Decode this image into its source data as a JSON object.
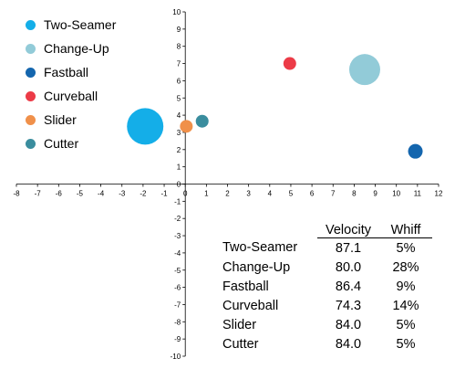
{
  "chart_data": {
    "type": "scatter",
    "title": "",
    "xlabel": "",
    "ylabel": "",
    "xlim": [
      -8,
      12
    ],
    "ylim": [
      -10,
      10
    ],
    "x_ticks": [
      "-8",
      "-7",
      "-6",
      "-5",
      "-4",
      "-3",
      "-2",
      "-1",
      "0",
      "1",
      "2",
      "3",
      "4",
      "5",
      "6",
      "7",
      "8",
      "9",
      "10",
      "11",
      "12"
    ],
    "y_ticks": [
      "-10",
      "-9",
      "-8",
      "-7",
      "-6",
      "-5",
      "-4",
      "-3",
      "-2",
      "-1",
      "0",
      "1",
      "2",
      "3",
      "4",
      "5",
      "6",
      "7",
      "8",
      "9",
      "10"
    ],
    "grid": false,
    "legend_position": "top-left",
    "series": [
      {
        "name": "Two-Seamer",
        "color": "#14aee8",
        "x": -1.9,
        "y": 3.35,
        "whiff_size": 5
      },
      {
        "name": "Change-Up",
        "color": "#92cbd8",
        "x": 8.5,
        "y": 6.65,
        "whiff_size": 28
      },
      {
        "name": "Fastball",
        "color": "#1466ae",
        "x": 10.9,
        "y": 1.9,
        "whiff_size": 9
      },
      {
        "name": "Curveball",
        "color": "#ec3b47",
        "x": 4.95,
        "y": 7.0,
        "whiff_size": 14
      },
      {
        "name": "Slider",
        "color": "#f0904a",
        "x": 0.05,
        "y": 3.35,
        "whiff_size": 5
      },
      {
        "name": "Cutter",
        "color": "#3a8d9e",
        "x": 0.8,
        "y": 3.65,
        "whiff_size": 5
      }
    ],
    "bubble_radii": [
      20,
      17,
      8,
      7,
      7,
      7
    ],
    "table": {
      "headers": [
        "",
        "Velocity",
        "Whiff"
      ],
      "rows": [
        [
          "Two-Seamer",
          "87.1",
          "5%"
        ],
        [
          "Change-Up",
          "80.0",
          "28%"
        ],
        [
          "Fastball",
          "86.4",
          "9%"
        ],
        [
          "Curveball",
          "74.3",
          "14%"
        ],
        [
          "Slider",
          "84.0",
          "5%"
        ],
        [
          "Cutter",
          "84.0",
          "5%"
        ]
      ]
    }
  }
}
